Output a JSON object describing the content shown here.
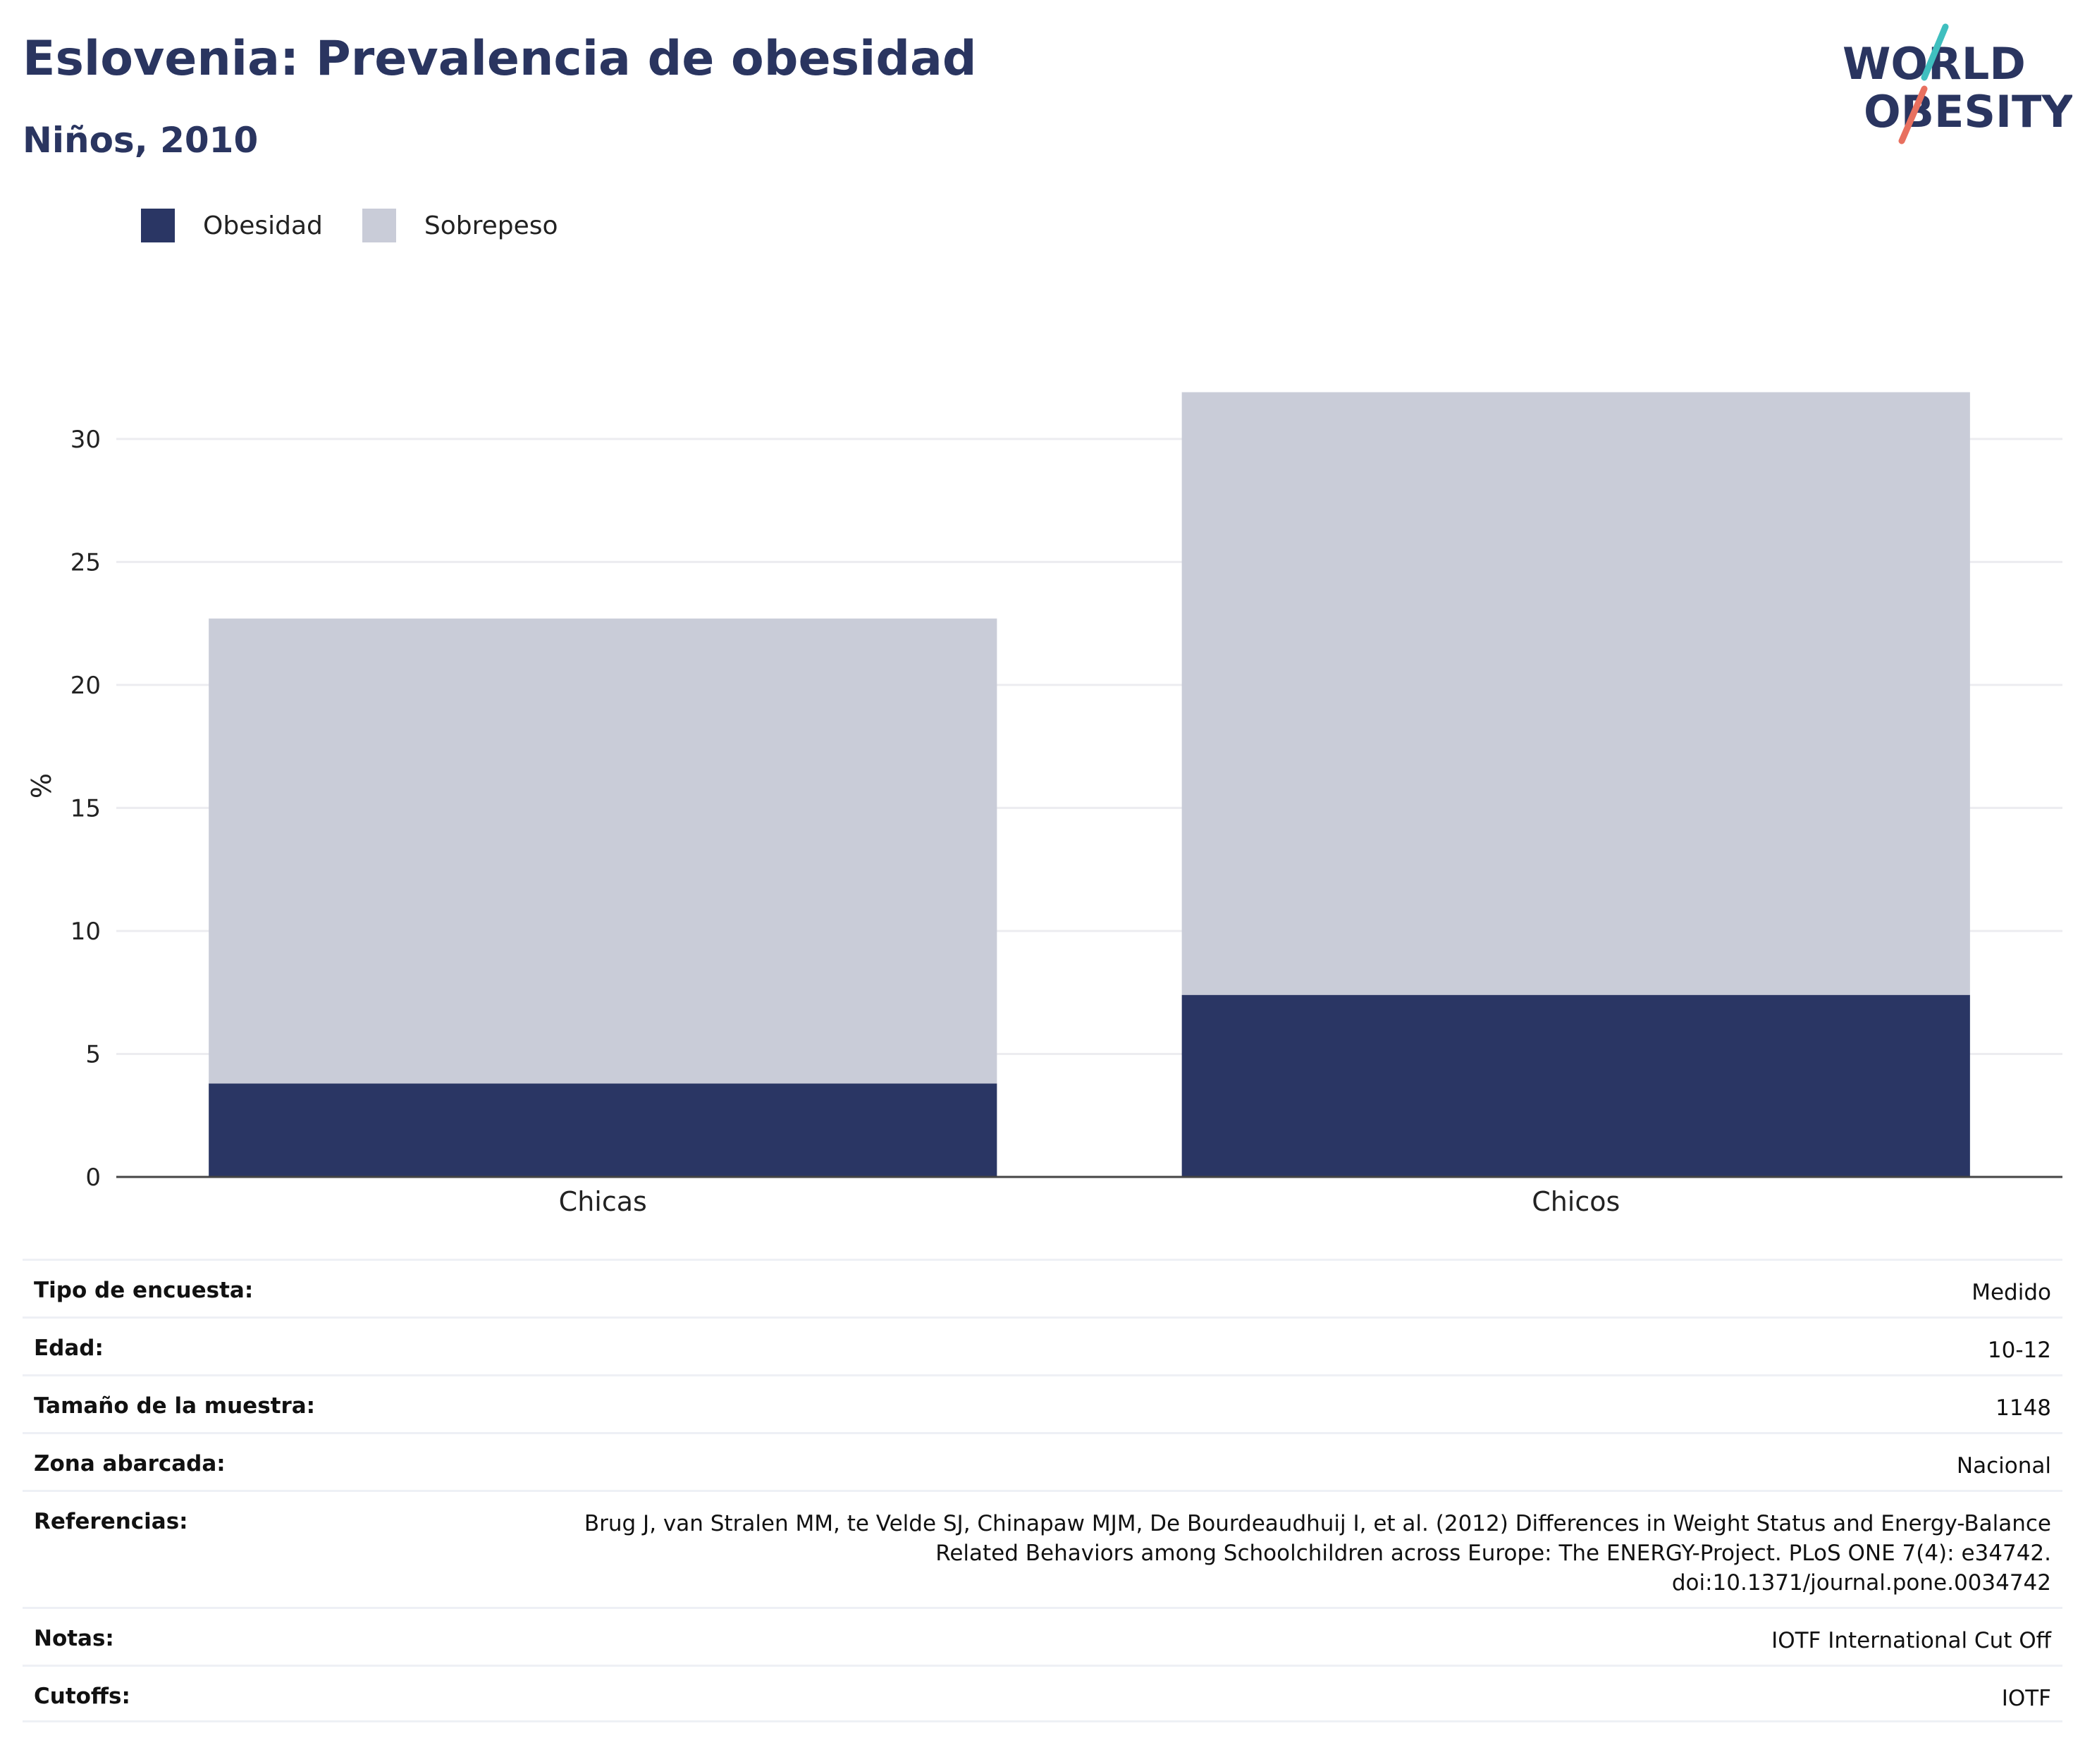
{
  "header": {
    "title": "Eslovenia: Prevalencia de obesidad",
    "subtitle": "Niños, 2010",
    "logo_line1": "WORLD",
    "logo_line2": "OBESITY"
  },
  "colors": {
    "obesidad": "#2a3664",
    "sobrepeso": "#c9ccd8",
    "title": "#2a3560",
    "logo_teal": "#3fbfbf",
    "logo_coral": "#e8705f"
  },
  "legend": [
    {
      "label": "Obesidad",
      "color_key": "obesidad"
    },
    {
      "label": "Sobrepeso",
      "color_key": "sobrepeso"
    }
  ],
  "chart_data": {
    "type": "bar",
    "stacked": true,
    "categories": [
      "Chicas",
      "Chicos"
    ],
    "series": [
      {
        "name": "Obesidad",
        "values": [
          3.8,
          7.4
        ]
      },
      {
        "name": "Sobrepeso",
        "values": [
          18.9,
          24.5
        ]
      }
    ],
    "ylabel": "%",
    "ylim": [
      0,
      31.8
    ],
    "yticks": [
      0,
      5,
      10,
      15,
      20,
      25,
      30
    ],
    "grid": true,
    "legend_position": "top-left"
  },
  "meta": [
    {
      "label": "Tipo de encuesta:",
      "value": [
        "Medido"
      ]
    },
    {
      "label": "Edad:",
      "value": [
        "10-12"
      ]
    },
    {
      "label": "Tamaño de la muestra:",
      "value": [
        "1148"
      ]
    },
    {
      "label": "Zona abarcada:",
      "value": [
        "Nacional"
      ]
    },
    {
      "label": "Referencias:",
      "value": [
        "Brug J, van Stralen MM, te Velde SJ, Chinapaw MJM, De Bourdeaudhuij I, et al. (2012) Differences in Weight Status and Energy-Balance",
        "Related Behaviors among Schoolchildren across Europe: The ENERGY-Project. PLoS ONE 7(4): e34742.",
        "doi:10.1371/journal.pone.0034742"
      ]
    },
    {
      "label": "Notas:",
      "value": [
        "IOTF International Cut Off"
      ]
    },
    {
      "label": "Cutoffs:",
      "value": [
        "IOTF"
      ]
    }
  ]
}
